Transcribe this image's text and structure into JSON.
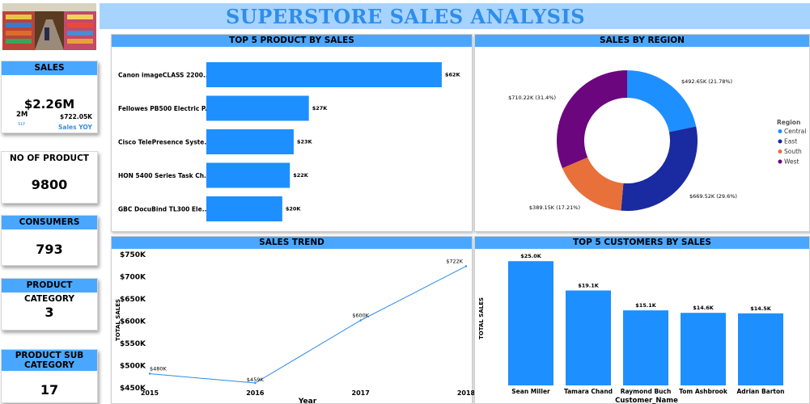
{
  "header": {
    "title": "SUPERSTORE  SALES ANALYSIS"
  },
  "kpis": {
    "sales": {
      "label": "SALES",
      "value": "$2.26M",
      "sly_value": "2M",
      "sly_label": "SLY",
      "yoy_value": "$722.05K",
      "yoy_label": "Sales YOY"
    },
    "products": {
      "label": "NO OF PRODUCT",
      "value": "9800"
    },
    "consumers": {
      "label": "CONSUMERS",
      "value": "793"
    },
    "category": {
      "label": "PRODUCT CATEGORY",
      "value": "3"
    },
    "subcategory": {
      "label": "PRODUCT SUB CATEGORY",
      "value": "17"
    }
  },
  "colors": {
    "accent": "#4aa7ff",
    "bar": "#1e8fff",
    "line": "#2c8ae8",
    "central": "#1e8fff",
    "east": "#1a2aa0",
    "south": "#e8703a",
    "west": "#6b067e"
  },
  "chart_data": [
    {
      "type": "bar",
      "orientation": "horizontal",
      "title": "TOP 5 PRODUCT BY SALES",
      "categories": [
        "Canon imageCLASS 2200...",
        "Fellowes PB500 Electric P...",
        "Cisco TelePresence Syste...",
        "HON 5400 Series Task Ch...",
        "GBC DocuBind TL300 Ele..."
      ],
      "values": [
        62,
        27,
        23,
        22,
        20
      ],
      "data_labels": [
        "$62K",
        "$27K",
        "$23K",
        "$22K",
        "$20K"
      ],
      "xlim": [
        0,
        65
      ]
    },
    {
      "type": "pie",
      "variant": "donut",
      "title": "SALES BY REGION",
      "legend_title": "Region",
      "legend_position": "right",
      "series": [
        {
          "name": "Central",
          "value": 492.65,
          "label": "$492.65K (21.78%)"
        },
        {
          "name": "East",
          "value": 669.52,
          "label": "$669.52K (29.6%)"
        },
        {
          "name": "South",
          "value": 389.15,
          "label": "$389.15K (17.21%)"
        },
        {
          "name": "West",
          "value": 710.22,
          "label": "$710.22K (31.4%)"
        }
      ]
    },
    {
      "type": "line",
      "title": "SALES TREND",
      "xlabel": "Year",
      "ylabel": "TOTAL SALES",
      "x": [
        2015,
        2016,
        2017,
        2018
      ],
      "values": [
        480,
        459,
        600,
        722
      ],
      "data_labels": [
        "$480K",
        "$459K",
        "$600K",
        "$722K"
      ],
      "ylim": [
        450,
        750
      ],
      "yticks": [
        "$450K",
        "$500K",
        "$550K",
        "$600K",
        "$650K",
        "$700K",
        "$750K"
      ]
    },
    {
      "type": "bar",
      "title": "TOP 5 CUSTOMERS BY SALES",
      "xlabel": "Customer_Name",
      "ylabel": "TOTAL SALES",
      "categories": [
        "Sean Miller",
        "Tamara Chand",
        "Raymond Buch",
        "Tom Ashbrook",
        "Adrian Barton"
      ],
      "values": [
        25.0,
        19.1,
        15.1,
        14.6,
        14.5
      ],
      "data_labels": [
        "$25.0K",
        "$19.1K",
        "$15.1K",
        "$14.6K",
        "$14.5K"
      ],
      "ylim": [
        0,
        26.5
      ]
    }
  ]
}
